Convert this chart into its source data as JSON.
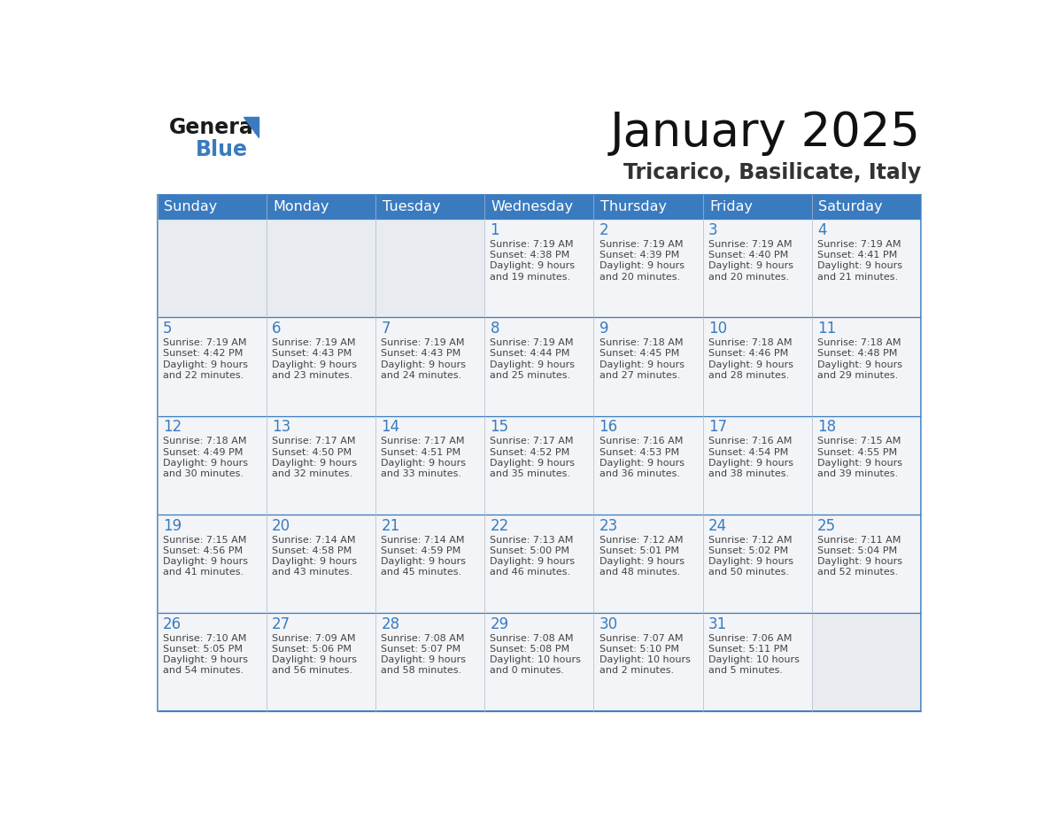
{
  "title": "January 2025",
  "subtitle": "Tricarico, Basilicate, Italy",
  "header_color": "#3a7bbf",
  "header_text_color": "#ffffff",
  "cell_bg_color": "#f2f2f2",
  "empty_cell_bg": "#e8e8e8",
  "day_number_color": "#3a7bbf",
  "text_color": "#444444",
  "line_color": "#3a7bbf",
  "days_of_week": [
    "Sunday",
    "Monday",
    "Tuesday",
    "Wednesday",
    "Thursday",
    "Friday",
    "Saturday"
  ],
  "calendar_data": [
    [
      {
        "day": "",
        "sunrise": "",
        "sunset": "",
        "daylight": ""
      },
      {
        "day": "",
        "sunrise": "",
        "sunset": "",
        "daylight": ""
      },
      {
        "day": "",
        "sunrise": "",
        "sunset": "",
        "daylight": ""
      },
      {
        "day": "1",
        "sunrise": "7:19 AM",
        "sunset": "4:38 PM",
        "daylight": "9 hours\nand 19 minutes."
      },
      {
        "day": "2",
        "sunrise": "7:19 AM",
        "sunset": "4:39 PM",
        "daylight": "9 hours\nand 20 minutes."
      },
      {
        "day": "3",
        "sunrise": "7:19 AM",
        "sunset": "4:40 PM",
        "daylight": "9 hours\nand 20 minutes."
      },
      {
        "day": "4",
        "sunrise": "7:19 AM",
        "sunset": "4:41 PM",
        "daylight": "9 hours\nand 21 minutes."
      }
    ],
    [
      {
        "day": "5",
        "sunrise": "7:19 AM",
        "sunset": "4:42 PM",
        "daylight": "9 hours\nand 22 minutes."
      },
      {
        "day": "6",
        "sunrise": "7:19 AM",
        "sunset": "4:43 PM",
        "daylight": "9 hours\nand 23 minutes."
      },
      {
        "day": "7",
        "sunrise": "7:19 AM",
        "sunset": "4:43 PM",
        "daylight": "9 hours\nand 24 minutes."
      },
      {
        "day": "8",
        "sunrise": "7:19 AM",
        "sunset": "4:44 PM",
        "daylight": "9 hours\nand 25 minutes."
      },
      {
        "day": "9",
        "sunrise": "7:18 AM",
        "sunset": "4:45 PM",
        "daylight": "9 hours\nand 27 minutes."
      },
      {
        "day": "10",
        "sunrise": "7:18 AM",
        "sunset": "4:46 PM",
        "daylight": "9 hours\nand 28 minutes."
      },
      {
        "day": "11",
        "sunrise": "7:18 AM",
        "sunset": "4:48 PM",
        "daylight": "9 hours\nand 29 minutes."
      }
    ],
    [
      {
        "day": "12",
        "sunrise": "7:18 AM",
        "sunset": "4:49 PM",
        "daylight": "9 hours\nand 30 minutes."
      },
      {
        "day": "13",
        "sunrise": "7:17 AM",
        "sunset": "4:50 PM",
        "daylight": "9 hours\nand 32 minutes."
      },
      {
        "day": "14",
        "sunrise": "7:17 AM",
        "sunset": "4:51 PM",
        "daylight": "9 hours\nand 33 minutes."
      },
      {
        "day": "15",
        "sunrise": "7:17 AM",
        "sunset": "4:52 PM",
        "daylight": "9 hours\nand 35 minutes."
      },
      {
        "day": "16",
        "sunrise": "7:16 AM",
        "sunset": "4:53 PM",
        "daylight": "9 hours\nand 36 minutes."
      },
      {
        "day": "17",
        "sunrise": "7:16 AM",
        "sunset": "4:54 PM",
        "daylight": "9 hours\nand 38 minutes."
      },
      {
        "day": "18",
        "sunrise": "7:15 AM",
        "sunset": "4:55 PM",
        "daylight": "9 hours\nand 39 minutes."
      }
    ],
    [
      {
        "day": "19",
        "sunrise": "7:15 AM",
        "sunset": "4:56 PM",
        "daylight": "9 hours\nand 41 minutes."
      },
      {
        "day": "20",
        "sunrise": "7:14 AM",
        "sunset": "4:58 PM",
        "daylight": "9 hours\nand 43 minutes."
      },
      {
        "day": "21",
        "sunrise": "7:14 AM",
        "sunset": "4:59 PM",
        "daylight": "9 hours\nand 45 minutes."
      },
      {
        "day": "22",
        "sunrise": "7:13 AM",
        "sunset": "5:00 PM",
        "daylight": "9 hours\nand 46 minutes."
      },
      {
        "day": "23",
        "sunrise": "7:12 AM",
        "sunset": "5:01 PM",
        "daylight": "9 hours\nand 48 minutes."
      },
      {
        "day": "24",
        "sunrise": "7:12 AM",
        "sunset": "5:02 PM",
        "daylight": "9 hours\nand 50 minutes."
      },
      {
        "day": "25",
        "sunrise": "7:11 AM",
        "sunset": "5:04 PM",
        "daylight": "9 hours\nand 52 minutes."
      }
    ],
    [
      {
        "day": "26",
        "sunrise": "7:10 AM",
        "sunset": "5:05 PM",
        "daylight": "9 hours\nand 54 minutes."
      },
      {
        "day": "27",
        "sunrise": "7:09 AM",
        "sunset": "5:06 PM",
        "daylight": "9 hours\nand 56 minutes."
      },
      {
        "day": "28",
        "sunrise": "7:08 AM",
        "sunset": "5:07 PM",
        "daylight": "9 hours\nand 58 minutes."
      },
      {
        "day": "29",
        "sunrise": "7:08 AM",
        "sunset": "5:08 PM",
        "daylight": "10 hours\nand 0 minutes."
      },
      {
        "day": "30",
        "sunrise": "7:07 AM",
        "sunset": "5:10 PM",
        "daylight": "10 hours\nand 2 minutes."
      },
      {
        "day": "31",
        "sunrise": "7:06 AM",
        "sunset": "5:11 PM",
        "daylight": "10 hours\nand 5 minutes."
      },
      {
        "day": "",
        "sunrise": "",
        "sunset": "",
        "daylight": ""
      }
    ]
  ]
}
